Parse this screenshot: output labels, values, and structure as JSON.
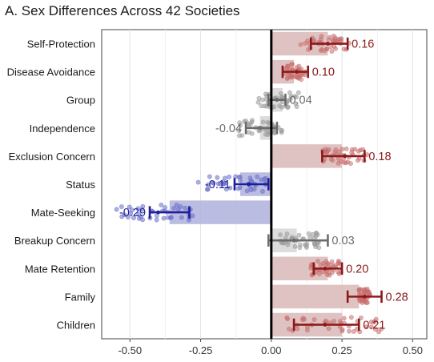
{
  "chart_data": {
    "type": "bar",
    "title": "A. Sex Differences Across 42 Societies",
    "xlabel": "",
    "ylabel": "",
    "xlim": [
      -0.6,
      0.55
    ],
    "ticks": [
      -0.5,
      -0.25,
      0.0,
      0.25,
      0.5
    ],
    "tick_labels": [
      "-0.50",
      "-0.25",
      "0.00",
      "0.25",
      "0.50"
    ],
    "grid": true,
    "colors": {
      "positive": "#8b1a1a",
      "negative": "#1f1f9c",
      "neutral": "#6b6b6b",
      "positive_bar": "#d9b7b7",
      "negative_bar": "#aeb2dc",
      "neutral_bar": "#d6d6d6",
      "positive_point": "#c8706f",
      "negative_point": "#6a70c8",
      "neutral_point": "#9a9a9a"
    },
    "categories": [
      {
        "name": "Self-Protection",
        "bar": 0.2,
        "mean": 0.2,
        "ci": [
          0.14,
          0.27
        ],
        "label": "0.16",
        "sign": "positive",
        "point_range": [
          0.1,
          0.28
        ]
      },
      {
        "name": "Disease Avoidance",
        "bar": 0.08,
        "mean": 0.09,
        "ci": [
          0.04,
          0.13
        ],
        "label": "0.10",
        "sign": "positive",
        "point_range": [
          0.05,
          0.12
        ]
      },
      {
        "name": "Group",
        "bar": 0.04,
        "mean": 0.02,
        "ci": [
          -0.01,
          0.05
        ],
        "label": "0.04",
        "sign": "neutral",
        "point_range": [
          -0.05,
          0.1
        ]
      },
      {
        "name": "Independence",
        "bar": -0.04,
        "mean": -0.04,
        "ci": [
          -0.09,
          0.02
        ],
        "label": "-0.04",
        "sign": "neutral",
        "point_range": [
          -0.12,
          0.04
        ]
      },
      {
        "name": "Exclusion Concern",
        "bar": 0.25,
        "mean": 0.26,
        "ci": [
          0.18,
          0.33
        ],
        "label": "0.18",
        "sign": "positive",
        "point_range": [
          0.18,
          0.34
        ]
      },
      {
        "name": "Status",
        "bar": -0.11,
        "mean": -0.08,
        "ci": [
          -0.13,
          -0.01
        ],
        "label": "-0.11",
        "sign": "negative",
        "point_range": [
          -0.26,
          -0.01
        ]
      },
      {
        "name": "Mate-Seeking",
        "bar": -0.36,
        "mean": -0.4,
        "ci": [
          -0.43,
          -0.29
        ],
        "label": "-0.29",
        "sign": "negative",
        "point_range": [
          -0.55,
          -0.26
        ]
      },
      {
        "name": "Breakup Concern",
        "bar": 0.09,
        "mean": 0.08,
        "ci": [
          -0.01,
          0.2
        ],
        "label": "0.03",
        "sign": "neutral",
        "point_range": [
          0.02,
          0.17
        ]
      },
      {
        "name": "Mate Retention",
        "bar": 0.2,
        "mean": 0.19,
        "ci": [
          0.15,
          0.25
        ],
        "label": "0.20",
        "sign": "positive",
        "point_range": [
          0.14,
          0.25
        ]
      },
      {
        "name": "Family",
        "bar": 0.31,
        "mean": 0.33,
        "ci": [
          0.27,
          0.39
        ],
        "label": "0.28",
        "sign": "positive",
        "point_range": [
          0.31,
          0.35
        ]
      },
      {
        "name": "Children",
        "bar": 0.25,
        "mean": 0.19,
        "ci": [
          0.08,
          0.31
        ],
        "label": "0.21",
        "sign": "positive",
        "point_range": [
          0.05,
          0.39
        ]
      }
    ]
  }
}
